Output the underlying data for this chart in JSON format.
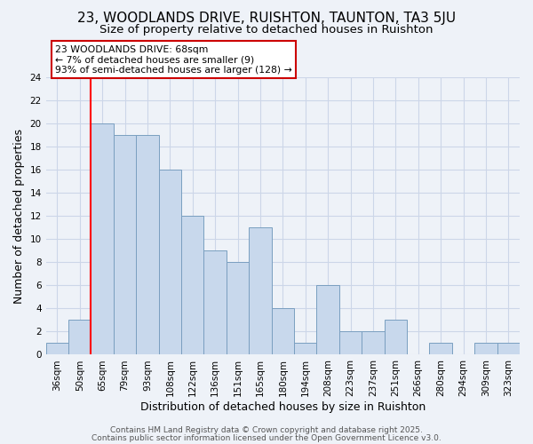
{
  "title": "23, WOODLANDS DRIVE, RUISHTON, TAUNTON, TA3 5JU",
  "subtitle": "Size of property relative to detached houses in Ruishton",
  "xlabel": "Distribution of detached houses by size in Ruishton",
  "ylabel": "Number of detached properties",
  "bar_color": "#c8d8ec",
  "bar_edge_color": "#7a9fc0",
  "categories": [
    "36sqm",
    "50sqm",
    "65sqm",
    "79sqm",
    "93sqm",
    "108sqm",
    "122sqm",
    "136sqm",
    "151sqm",
    "165sqm",
    "180sqm",
    "194sqm",
    "208sqm",
    "223sqm",
    "237sqm",
    "251sqm",
    "266sqm",
    "280sqm",
    "294sqm",
    "309sqm",
    "323sqm"
  ],
  "values": [
    1,
    3,
    20,
    19,
    19,
    16,
    12,
    9,
    8,
    11,
    4,
    1,
    6,
    2,
    2,
    3,
    0,
    1,
    0,
    1,
    1
  ],
  "red_line_index": 2,
  "annotation_title": "23 WOODLANDS DRIVE: 68sqm",
  "annotation_line1": "← 7% of detached houses are smaller (9)",
  "annotation_line2": "93% of semi-detached houses are larger (128) →",
  "annotation_box_color": "#ffffff",
  "annotation_box_edge": "#cc0000",
  "ylim": [
    0,
    24
  ],
  "yticks": [
    0,
    2,
    4,
    6,
    8,
    10,
    12,
    14,
    16,
    18,
    20,
    22,
    24
  ],
  "grid_color": "#ccd6e8",
  "footer1": "Contains HM Land Registry data © Crown copyright and database right 2025.",
  "footer2": "Contains public sector information licensed under the Open Government Licence v3.0.",
  "bg_color": "#eef2f8",
  "title_fontsize": 11,
  "subtitle_fontsize": 9.5,
  "xlabel_fontsize": 9,
  "ylabel_fontsize": 9,
  "tick_fontsize": 7.5,
  "footer_fontsize": 6.5
}
